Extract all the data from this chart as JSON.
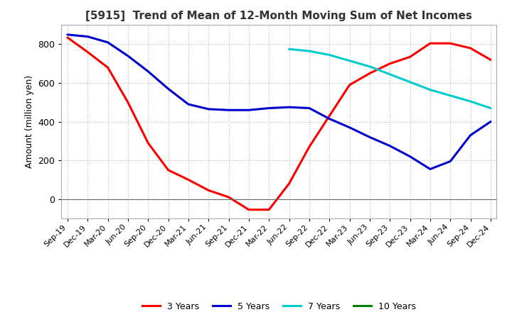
{
  "title": "[5915]  Trend of Mean of 12-Month Moving Sum of Net Incomes",
  "ylabel": "Amount (million yen)",
  "ylim": [
    -100,
    900
  ],
  "yticks": [
    0,
    200,
    400,
    600,
    800
  ],
  "background_color": "#ffffff",
  "grid_color": "#bbbbbb",
  "legend_labels": [
    "3 Years",
    "5 Years",
    "7 Years",
    "10 Years"
  ],
  "line_colors": [
    "#ff0000",
    "#0000cc",
    "#00cccc",
    "#008000"
  ],
  "x_labels": [
    "Sep-19",
    "Dec-19",
    "Mar-20",
    "Jun-20",
    "Sep-20",
    "Dec-20",
    "Mar-21",
    "Jun-21",
    "Sep-21",
    "Dec-21",
    "Mar-22",
    "Jun-22",
    "Sep-22",
    "Dec-22",
    "Mar-23",
    "Jun-23",
    "Sep-23",
    "Dec-23",
    "Mar-24",
    "Jun-24",
    "Sep-24",
    "Dec-24"
  ],
  "series_3y": [
    835,
    760,
    680,
    500,
    290,
    150,
    100,
    45,
    10,
    -55,
    -55,
    80,
    270,
    430,
    590,
    650,
    700,
    735,
    805,
    805,
    780,
    720
  ],
  "series_5y": [
    850,
    840,
    810,
    740,
    660,
    570,
    490,
    465,
    460,
    460,
    470,
    475,
    470,
    415,
    370,
    320,
    275,
    220,
    155,
    195,
    330,
    400
  ],
  "series_7y": [
    null,
    null,
    null,
    null,
    null,
    null,
    null,
    null,
    null,
    null,
    null,
    775,
    765,
    745,
    715,
    685,
    645,
    605,
    565,
    535,
    505,
    470
  ],
  "series_10y": [
    null,
    null,
    null,
    null,
    null,
    null,
    null,
    null,
    null,
    null,
    null,
    null,
    null,
    null,
    null,
    null,
    null,
    null,
    null,
    null,
    null,
    null
  ]
}
